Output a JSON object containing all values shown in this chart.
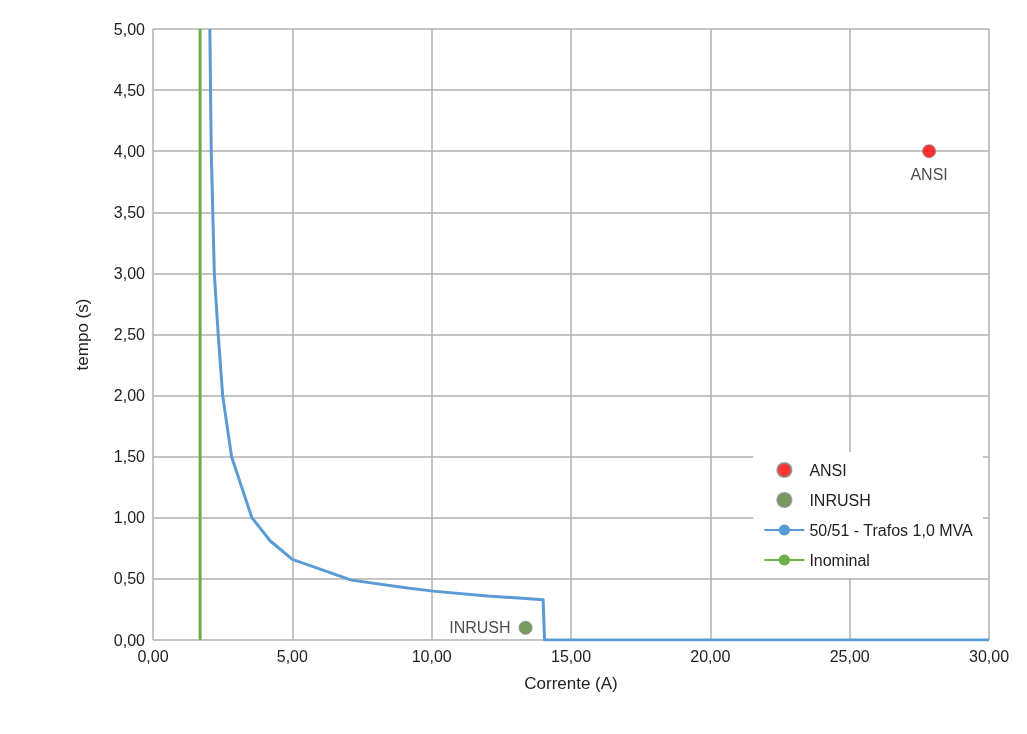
{
  "chart_data": {
    "type": "line",
    "xlabel": "Corrente (A)",
    "ylabel": "tempo (s)",
    "xlim": [
      0,
      30
    ],
    "ylim": [
      0,
      5
    ],
    "xticks": [
      {
        "value": 0,
        "label": "0,00"
      },
      {
        "value": 5,
        "label": "5,00"
      },
      {
        "value": 10,
        "label": "10,00"
      },
      {
        "value": 15,
        "label": "15,00"
      },
      {
        "value": 20,
        "label": "20,00"
      },
      {
        "value": 25,
        "label": "25,00"
      },
      {
        "value": 30,
        "label": "30,00"
      }
    ],
    "yticks": [
      {
        "value": 0,
        "label": "0,00"
      },
      {
        "value": 0.5,
        "label": "0,50"
      },
      {
        "value": 1,
        "label": "1,00"
      },
      {
        "value": 1.5,
        "label": "1,50"
      },
      {
        "value": 2,
        "label": "2,00"
      },
      {
        "value": 2.5,
        "label": "2,50"
      },
      {
        "value": 3,
        "label": "3,00"
      },
      {
        "value": 3.5,
        "label": "3,50"
      },
      {
        "value": 4,
        "label": "4,00"
      },
      {
        "value": 4.5,
        "label": "4,50"
      },
      {
        "value": 5,
        "label": "5,00"
      }
    ],
    "grid": true,
    "legend": "bottom right",
    "series": [
      {
        "name": "ANSI",
        "type": "scatter",
        "marker": "circle",
        "color": "#ff0000",
        "x": [
          27.85
        ],
        "values": [
          4.0
        ]
      },
      {
        "name": "INRUSH",
        "type": "scatter",
        "marker": "circle",
        "color": "#548235",
        "x": [
          13.37
        ],
        "values": [
          0.1
        ]
      },
      {
        "name": "50/51 - Trafos 1,0 MVA",
        "marker": "none",
        "color": "#5b9bd5",
        "x": [
          2.04,
          2.09,
          2.2,
          2.34,
          2.5,
          2.82,
          3.55,
          4.21,
          5.0,
          7.12,
          9.0,
          10.05,
          12.0,
          14.0,
          14.05,
          30
        ],
        "values": [
          5.0,
          4.0,
          3.0,
          2.5,
          2.0,
          1.5,
          1.0,
          0.81,
          0.66,
          0.49,
          0.43,
          0.4,
          0.36,
          0.33,
          0,
          0
        ]
      },
      {
        "name": "Inominal",
        "marker": "none",
        "color": "#70ad47",
        "x": [
          1.69,
          1.69
        ],
        "values": [
          0,
          5
        ]
      }
    ]
  }
}
